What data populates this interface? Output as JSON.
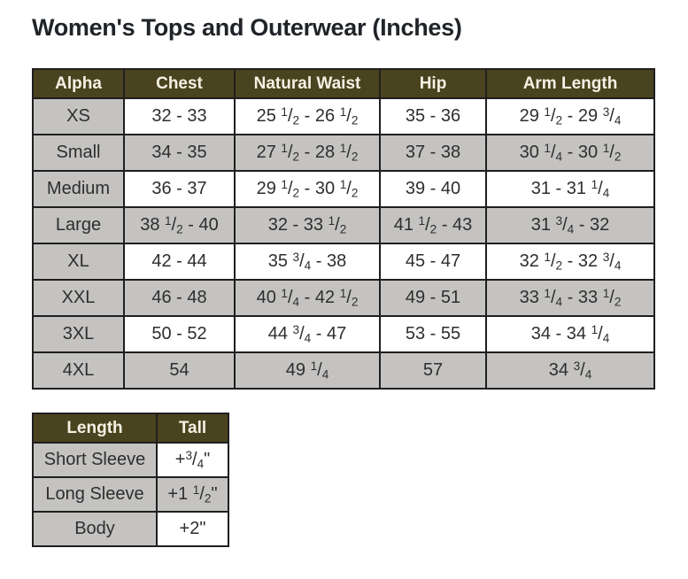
{
  "page": {
    "title": "Women's Tops and Outerwear (Inches)"
  },
  "colors": {
    "header_bg": "#4a431f",
    "header_text": "#f5f1e4",
    "shaded_cell": "#c4c3c1",
    "border": "#1f1f1f",
    "title_text": "#202428",
    "cell_text": "#2e2e2e"
  },
  "size_table": {
    "headers": [
      "Alpha",
      "Chest",
      "Natural Waist",
      "Hip",
      "Arm Length"
    ],
    "rows": [
      [
        "XS",
        "32 - 33",
        "25 1/2 - 26 1/2",
        "35 - 36",
        "29 1/2 - 29 3/4"
      ],
      [
        "Small",
        "34 - 35",
        "27 1/2 - 28 1/2",
        "37 - 38",
        "30 1/4 - 30 1/2"
      ],
      [
        "Medium",
        "36 - 37",
        "29 1/2 - 30 1/2",
        "39 - 40",
        "31 - 31 1/4"
      ],
      [
        "Large",
        "38 1/2 - 40",
        "32 - 33 1/2",
        "41 1/2 - 43",
        "31 3/4 - 32"
      ],
      [
        "XL",
        "42 - 44",
        "35 3/4 - 38",
        "45 - 47",
        "32 1/2 - 32 3/4"
      ],
      [
        "XXL",
        "46 - 48",
        "40 1/4 - 42 1/2",
        "49 - 51",
        "33 1/4 - 33 1/2"
      ],
      [
        "3XL",
        "50 - 52",
        "44 3/4 - 47",
        "53 - 55",
        "34 - 34 1/4"
      ],
      [
        "4XL",
        "54",
        "49 1/4",
        "57",
        "34 3/4"
      ]
    ]
  },
  "length_table": {
    "headers": [
      "Length",
      "Tall"
    ],
    "rows": [
      [
        "Short Sleeve",
        "+3/4\""
      ],
      [
        "Long Sleeve",
        "+1 1/2\""
      ],
      [
        "Body",
        "+2\""
      ]
    ]
  }
}
